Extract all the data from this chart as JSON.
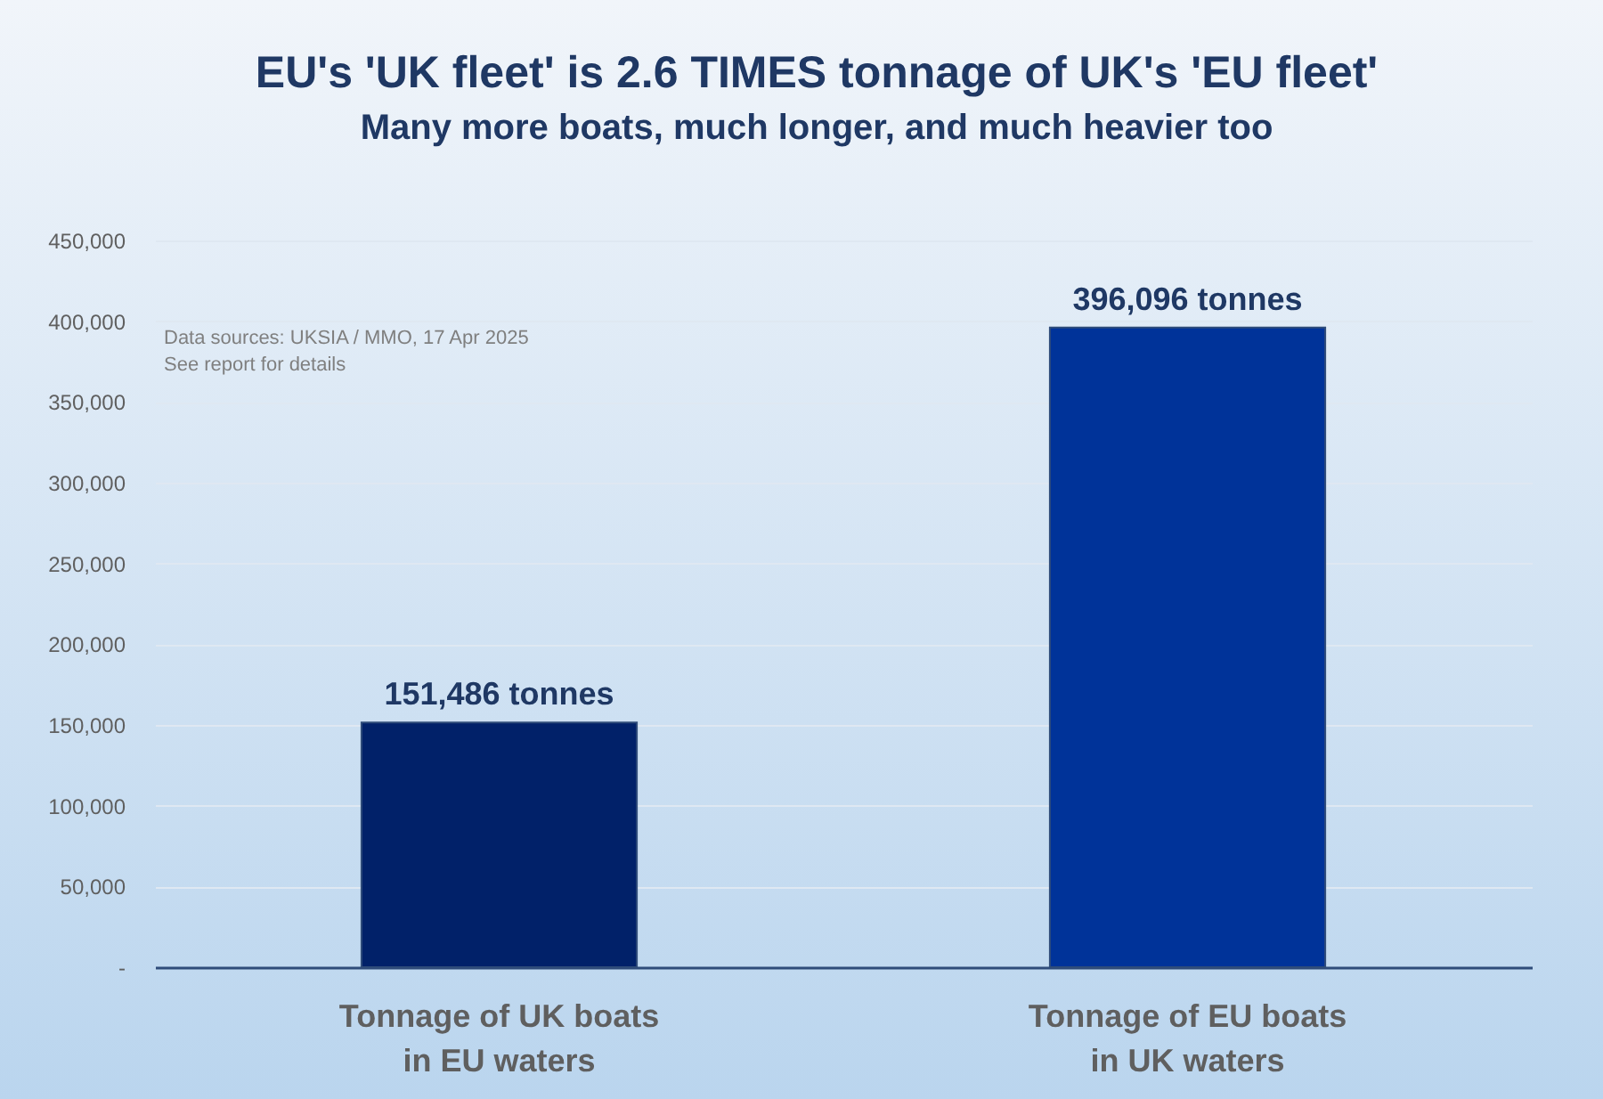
{
  "chart_data": {
    "type": "bar",
    "title": "EU's 'UK fleet' is 2.6 TIMES tonnage of UK's 'EU fleet'",
    "subtitle": "Many more boats, much longer, and much heavier too",
    "categories": [
      "Tonnage of UK boats in EU waters",
      "Tonnage of EU boats in UK waters"
    ],
    "values": [
      151486,
      396096
    ],
    "colors": [
      "#012169",
      "#003399"
    ],
    "value_labels": [
      "151,486 tonnes",
      "396,096 tonnes"
    ],
    "ylim": [
      0,
      450000
    ],
    "yticks": [
      {
        "value": 0,
        "label": "-"
      },
      {
        "value": 50000,
        "label": "50,000"
      },
      {
        "value": 100000,
        "label": "100,000"
      },
      {
        "value": 150000,
        "label": "150,000"
      },
      {
        "value": 200000,
        "label": "200,000"
      },
      {
        "value": 250000,
        "label": "250,000"
      },
      {
        "value": 300000,
        "label": "300,000"
      },
      {
        "value": 350000,
        "label": "350,000"
      },
      {
        "value": 400000,
        "label": "400,000"
      },
      {
        "value": 450000,
        "label": "450,000"
      }
    ],
    "grid": "y",
    "annotations": [
      "Data sources: UKSIA / MMO, 17 Apr 2025",
      "See report for details"
    ]
  }
}
